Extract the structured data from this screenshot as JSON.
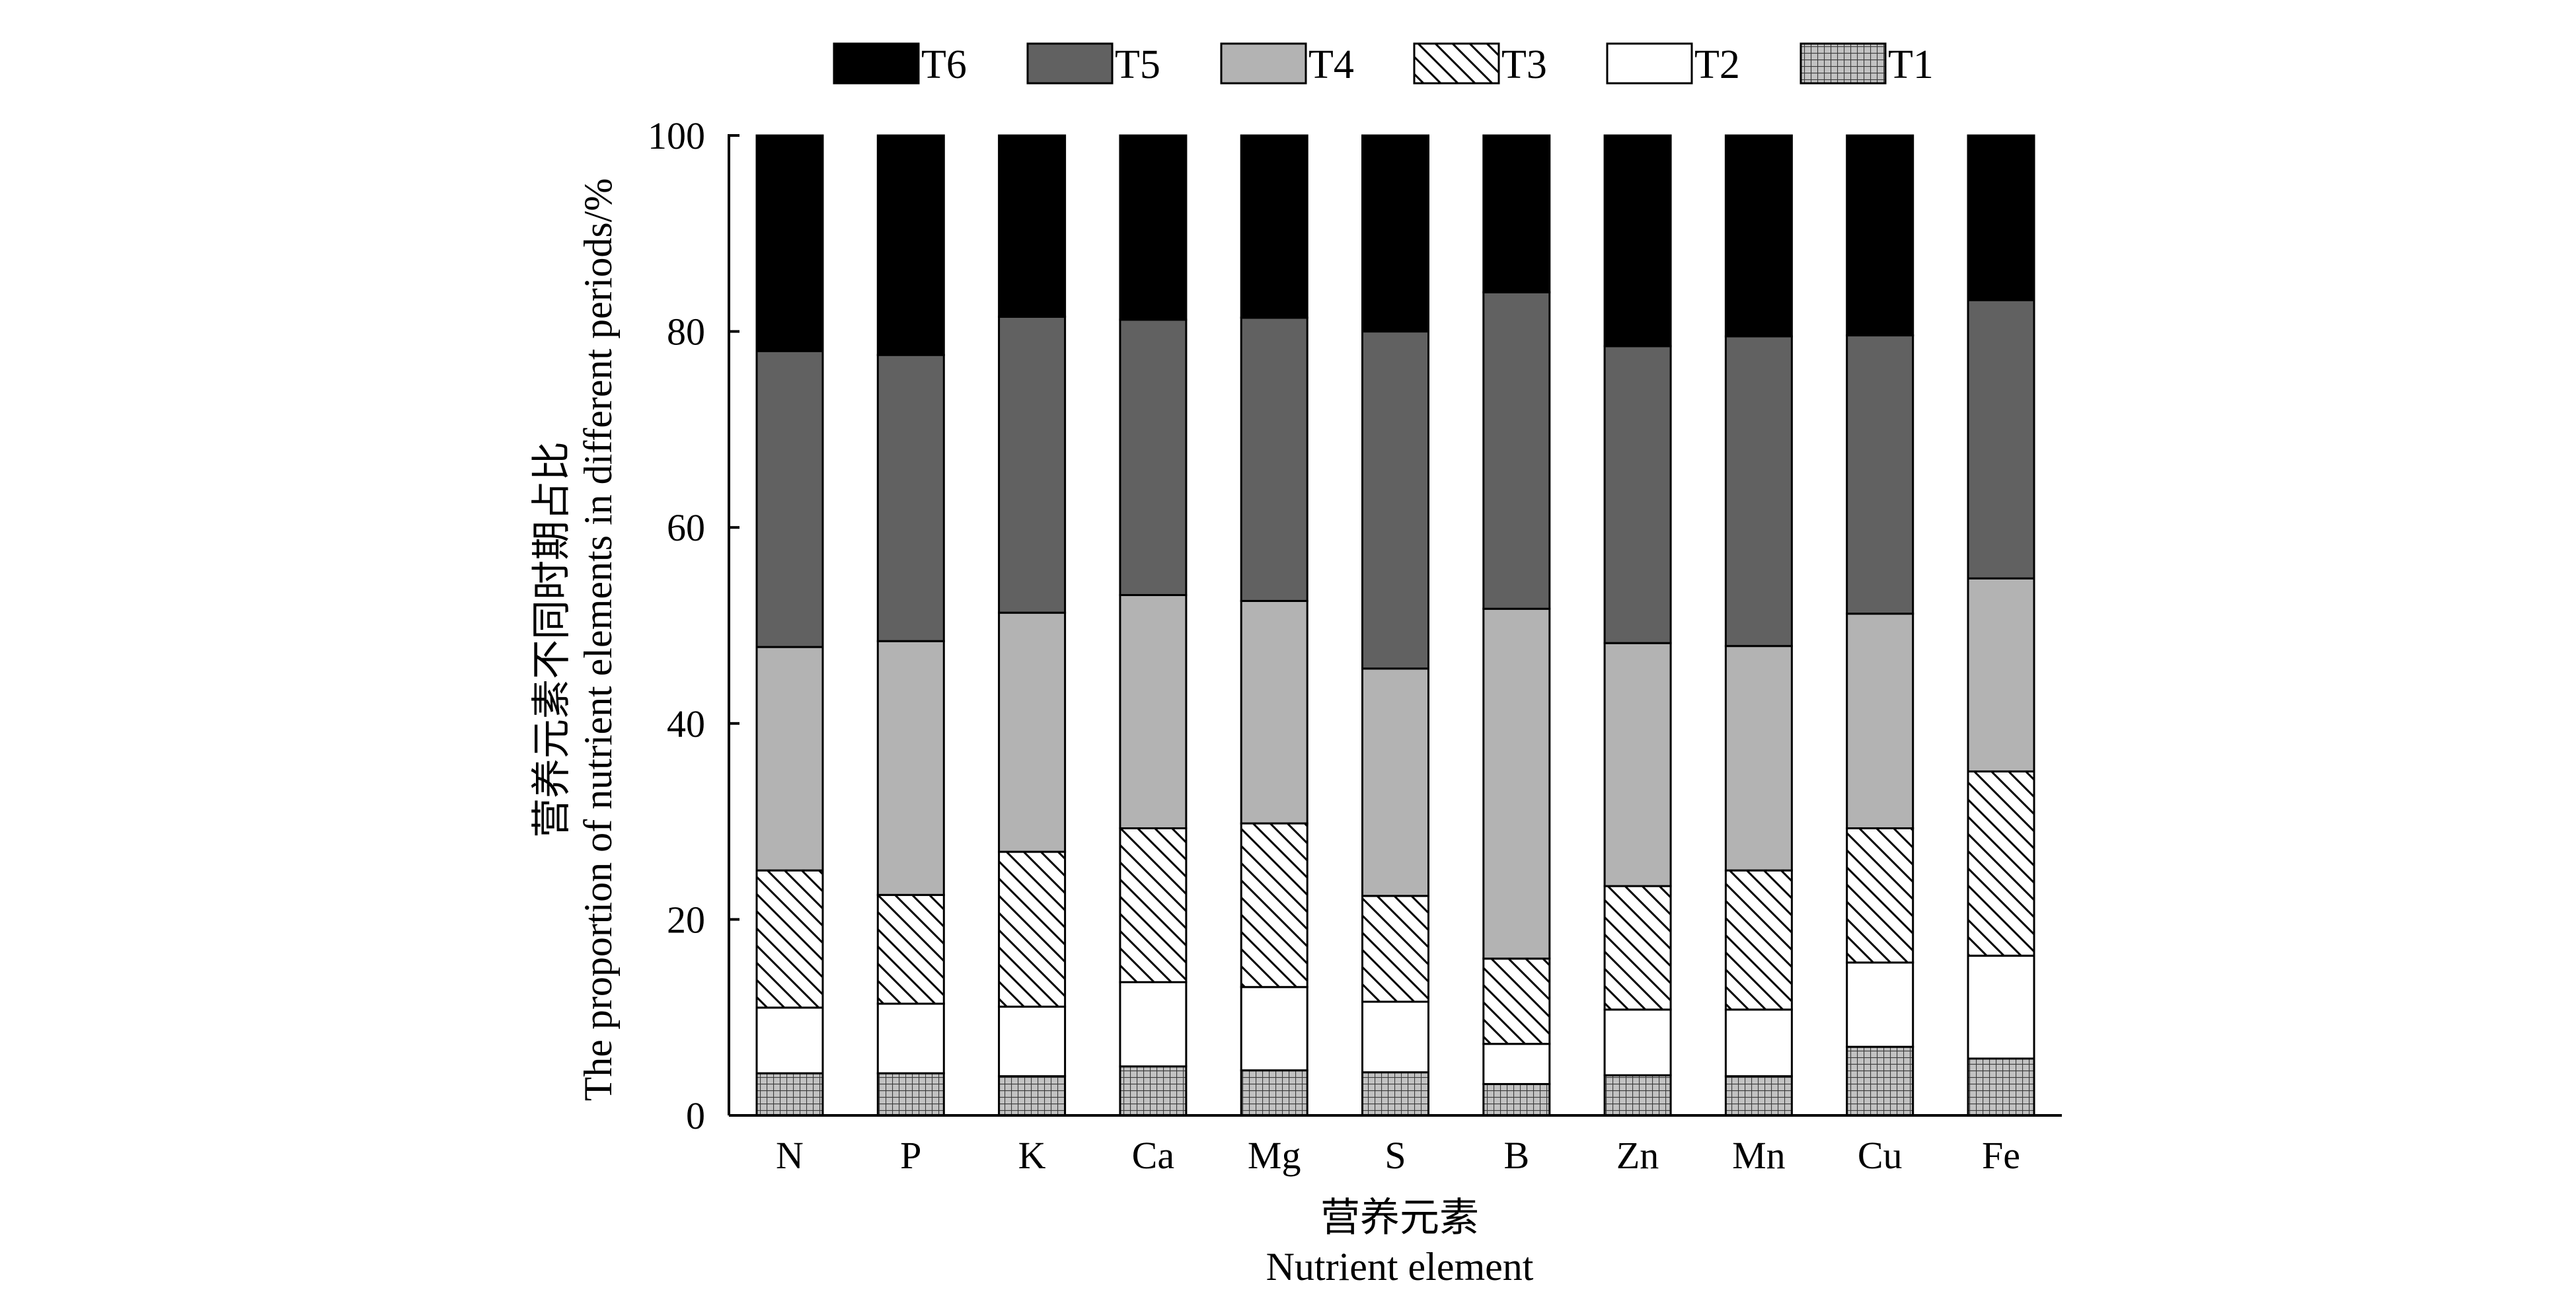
{
  "chart_data": {
    "type": "bar",
    "stacked": true,
    "title": "",
    "xlabel": "营养元素",
    "xlabel_en": "Nutrient element",
    "ylabel": "营养元素不同时期占比",
    "ylabel_en": "The proportion of nutrient elements in different periods/%",
    "ylim": [
      0,
      100
    ],
    "yticks": [
      0,
      20,
      40,
      60,
      80,
      100
    ],
    "grid": false,
    "legend_position": "top",
    "categories": [
      "N",
      "P",
      "K",
      "Ca",
      "Mg",
      "S",
      "B",
      "Zn",
      "Mn",
      "Cu",
      "Fe"
    ],
    "series": [
      {
        "name": "T1",
        "fill": "crosshatch",
        "values": [
          4.3,
          4.3,
          4.0,
          5.0,
          4.6,
          4.4,
          3.2,
          4.1,
          4.0,
          7.0,
          5.8
        ]
      },
      {
        "name": "T2",
        "fill": "#ffffff",
        "values": [
          6.7,
          7.1,
          7.1,
          8.6,
          8.5,
          7.2,
          4.1,
          6.7,
          6.8,
          8.6,
          10.5
        ]
      },
      {
        "name": "T3",
        "fill": "diagonal",
        "values": [
          14.0,
          11.1,
          15.8,
          15.7,
          16.7,
          10.8,
          8.7,
          12.6,
          14.2,
          13.7,
          18.8
        ]
      },
      {
        "name": "T4",
        "fill": "#b3b3b3",
        "values": [
          22.8,
          25.9,
          24.4,
          23.8,
          22.7,
          23.2,
          35.7,
          24.8,
          22.9,
          21.9,
          19.7
        ]
      },
      {
        "name": "T5",
        "fill": "#616161",
        "values": [
          30.2,
          29.2,
          30.2,
          28.1,
          28.9,
          34.4,
          32.3,
          30.3,
          31.6,
          28.4,
          28.4
        ]
      },
      {
        "name": "T6",
        "fill": "#000000",
        "values": [
          22.0,
          22.4,
          18.5,
          18.8,
          18.6,
          20.0,
          16.0,
          21.5,
          20.5,
          20.4,
          16.8
        ]
      }
    ],
    "legend_order": [
      "T6",
      "T5",
      "T4",
      "T3",
      "T2",
      "T1"
    ]
  }
}
